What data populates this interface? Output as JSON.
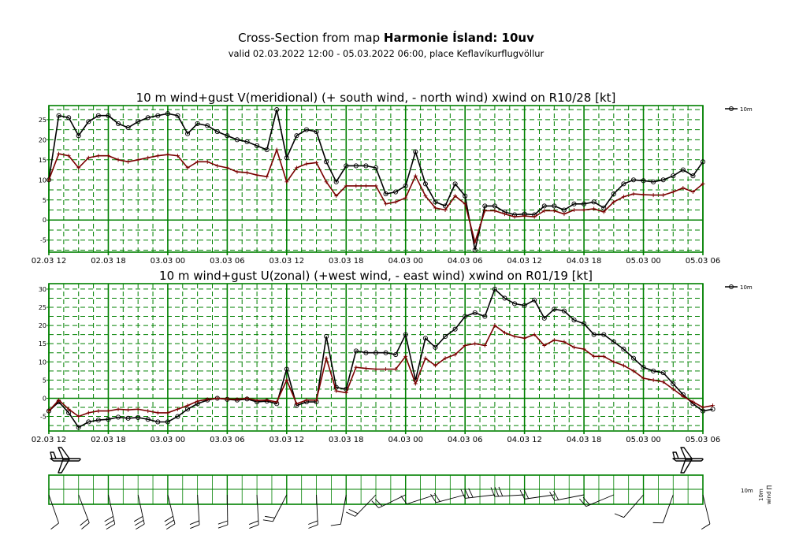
{
  "header": {
    "title_prefix": "Cross-Section from map ",
    "title_bold": "Harmonie Ísland: 10uv",
    "subtitle": "valid 02.03.2022 12:00 - 05.03.2022 06:00, place Keflavíkurflugvöllur"
  },
  "colors": {
    "grid": "#008000",
    "wind": "#000000",
    "base": "#7a0000"
  },
  "legend_label": "10m",
  "wind_panel_labels": {
    "height": "10m",
    "rotated_a": "10m",
    "rotated_b": "wind ∏"
  },
  "chart_data": [
    {
      "type": "line",
      "title": "10 m wind+gust V(meridional) (+ south wind, - north wind) xwind on R10/28 [kt]",
      "x_ticks": [
        "02.03 12",
        "02.03 18",
        "03.03 00",
        "03.03 06",
        "03.03 12",
        "03.03 18",
        "04.03 00",
        "04.03 06",
        "04.03 12",
        "04.03 18",
        "05.03 00",
        "05.03 06"
      ],
      "x_range_hours": [
        0,
        66
      ],
      "y_ticks": [
        -5,
        0,
        5,
        10,
        15,
        20,
        25
      ],
      "ylim": [
        -8,
        28.5
      ],
      "legend": "top-right",
      "series": [
        {
          "name": "10m",
          "marker": "circle",
          "values": [
            10,
            26,
            25.5,
            21,
            24.5,
            26,
            26,
            24,
            23,
            24.5,
            25.5,
            26,
            26.5,
            26,
            21.5,
            24,
            23.5,
            22,
            21,
            20,
            19.5,
            18.5,
            17.5,
            27.5,
            15.5,
            21,
            22.5,
            22,
            14.5,
            9.5,
            13.5,
            13.5,
            13.5,
            13,
            6.5,
            7,
            8.5,
            17,
            9,
            4.5,
            3.5,
            9,
            6,
            -7.5,
            3.5,
            3.5,
            2,
            1.3,
            1.5,
            1.3,
            3.5,
            3.5,
            2.5,
            4,
            4,
            4.5,
            3,
            6.5,
            9,
            10,
            9.8,
            9.5,
            10,
            11,
            12.5,
            11,
            14.5
          ]
        },
        {
          "marker": "plus",
          "values": [
            10,
            16.5,
            16,
            13,
            15.5,
            16,
            16,
            15,
            14.5,
            15,
            15.5,
            16,
            16.3,
            16,
            13,
            14.5,
            14.5,
            13.5,
            13,
            12,
            11.8,
            11.2,
            10.8,
            17.5,
            9.5,
            13,
            14,
            14.3,
            9.5,
            6,
            8.5,
            8.5,
            8.5,
            8.5,
            4,
            4.5,
            5.5,
            11,
            6,
            3,
            2.5,
            6,
            4,
            -5.5,
            2.3,
            2.3,
            1.5,
            0.8,
            1,
            0.8,
            2.3,
            2.3,
            1.5,
            2.5,
            2.5,
            2.8,
            2,
            4.5,
            5.8,
            6.5,
            6.3,
            6.2,
            6.2,
            7,
            8,
            7,
            9
          ]
        }
      ]
    },
    {
      "type": "line",
      "title": "10 m wind+gust U(zonal) (+west wind, - east wind) xwind on R01/19 [kt]",
      "x_ticks": [
        "02.03 12",
        "02.03 18",
        "03.03 00",
        "03.03 06",
        "03.03 12",
        "03.03 18",
        "04.03 00",
        "04.03 06",
        "04.03 12",
        "04.03 18",
        "05.03 00",
        "05.03 06"
      ],
      "x_range_hours": [
        0,
        66
      ],
      "y_ticks": [
        -5,
        0,
        5,
        10,
        15,
        20,
        25,
        30
      ],
      "ylim": [
        -9,
        31.5
      ],
      "legend": "top-right",
      "series": [
        {
          "name": "10m",
          "marker": "circle",
          "values": [
            -3.5,
            -1,
            -4,
            -8,
            -6.5,
            -6,
            -5.8,
            -5.2,
            -5.5,
            -5.3,
            -5.8,
            -6.5,
            -6.5,
            -5,
            -3,
            -1.5,
            -0.5,
            0,
            -0.3,
            -0.5,
            -0.2,
            -1,
            -0.8,
            -1.5,
            8,
            -2,
            -1,
            -1,
            17,
            3,
            2.5,
            13,
            12.5,
            12.5,
            12.5,
            12,
            17.5,
            5,
            16.5,
            14,
            17,
            19,
            22.5,
            23.5,
            22.5,
            30,
            27.5,
            26,
            25.5,
            27,
            22,
            24.5,
            24,
            21.5,
            20.5,
            17.5,
            17.5,
            15.5,
            13.5,
            11,
            8.5,
            7.5,
            7,
            4,
            1,
            -1.5,
            -3.5,
            -3
          ]
        },
        {
          "marker": "plus",
          "values": [
            -3.5,
            -0.5,
            -3,
            -5,
            -4,
            -3.5,
            -3.5,
            -3,
            -3.2,
            -3,
            -3.5,
            -4,
            -4,
            -3,
            -2,
            -0.8,
            -0.3,
            0,
            -0.2,
            -0.3,
            0,
            -0.6,
            -0.5,
            -1,
            5,
            -1.5,
            -0.5,
            -0.5,
            11,
            2,
            1.5,
            8.5,
            8.2,
            8,
            8,
            8,
            11.5,
            4,
            11,
            9,
            11,
            12,
            14.5,
            15,
            14.5,
            20,
            18,
            17,
            16.5,
            17.5,
            14.5,
            16,
            15.5,
            14,
            13.5,
            11.5,
            11.5,
            10,
            9,
            7.5,
            5.5,
            5,
            4.5,
            2.5,
            0.5,
            -1,
            -2.5,
            -2
          ]
        }
      ]
    }
  ]
}
